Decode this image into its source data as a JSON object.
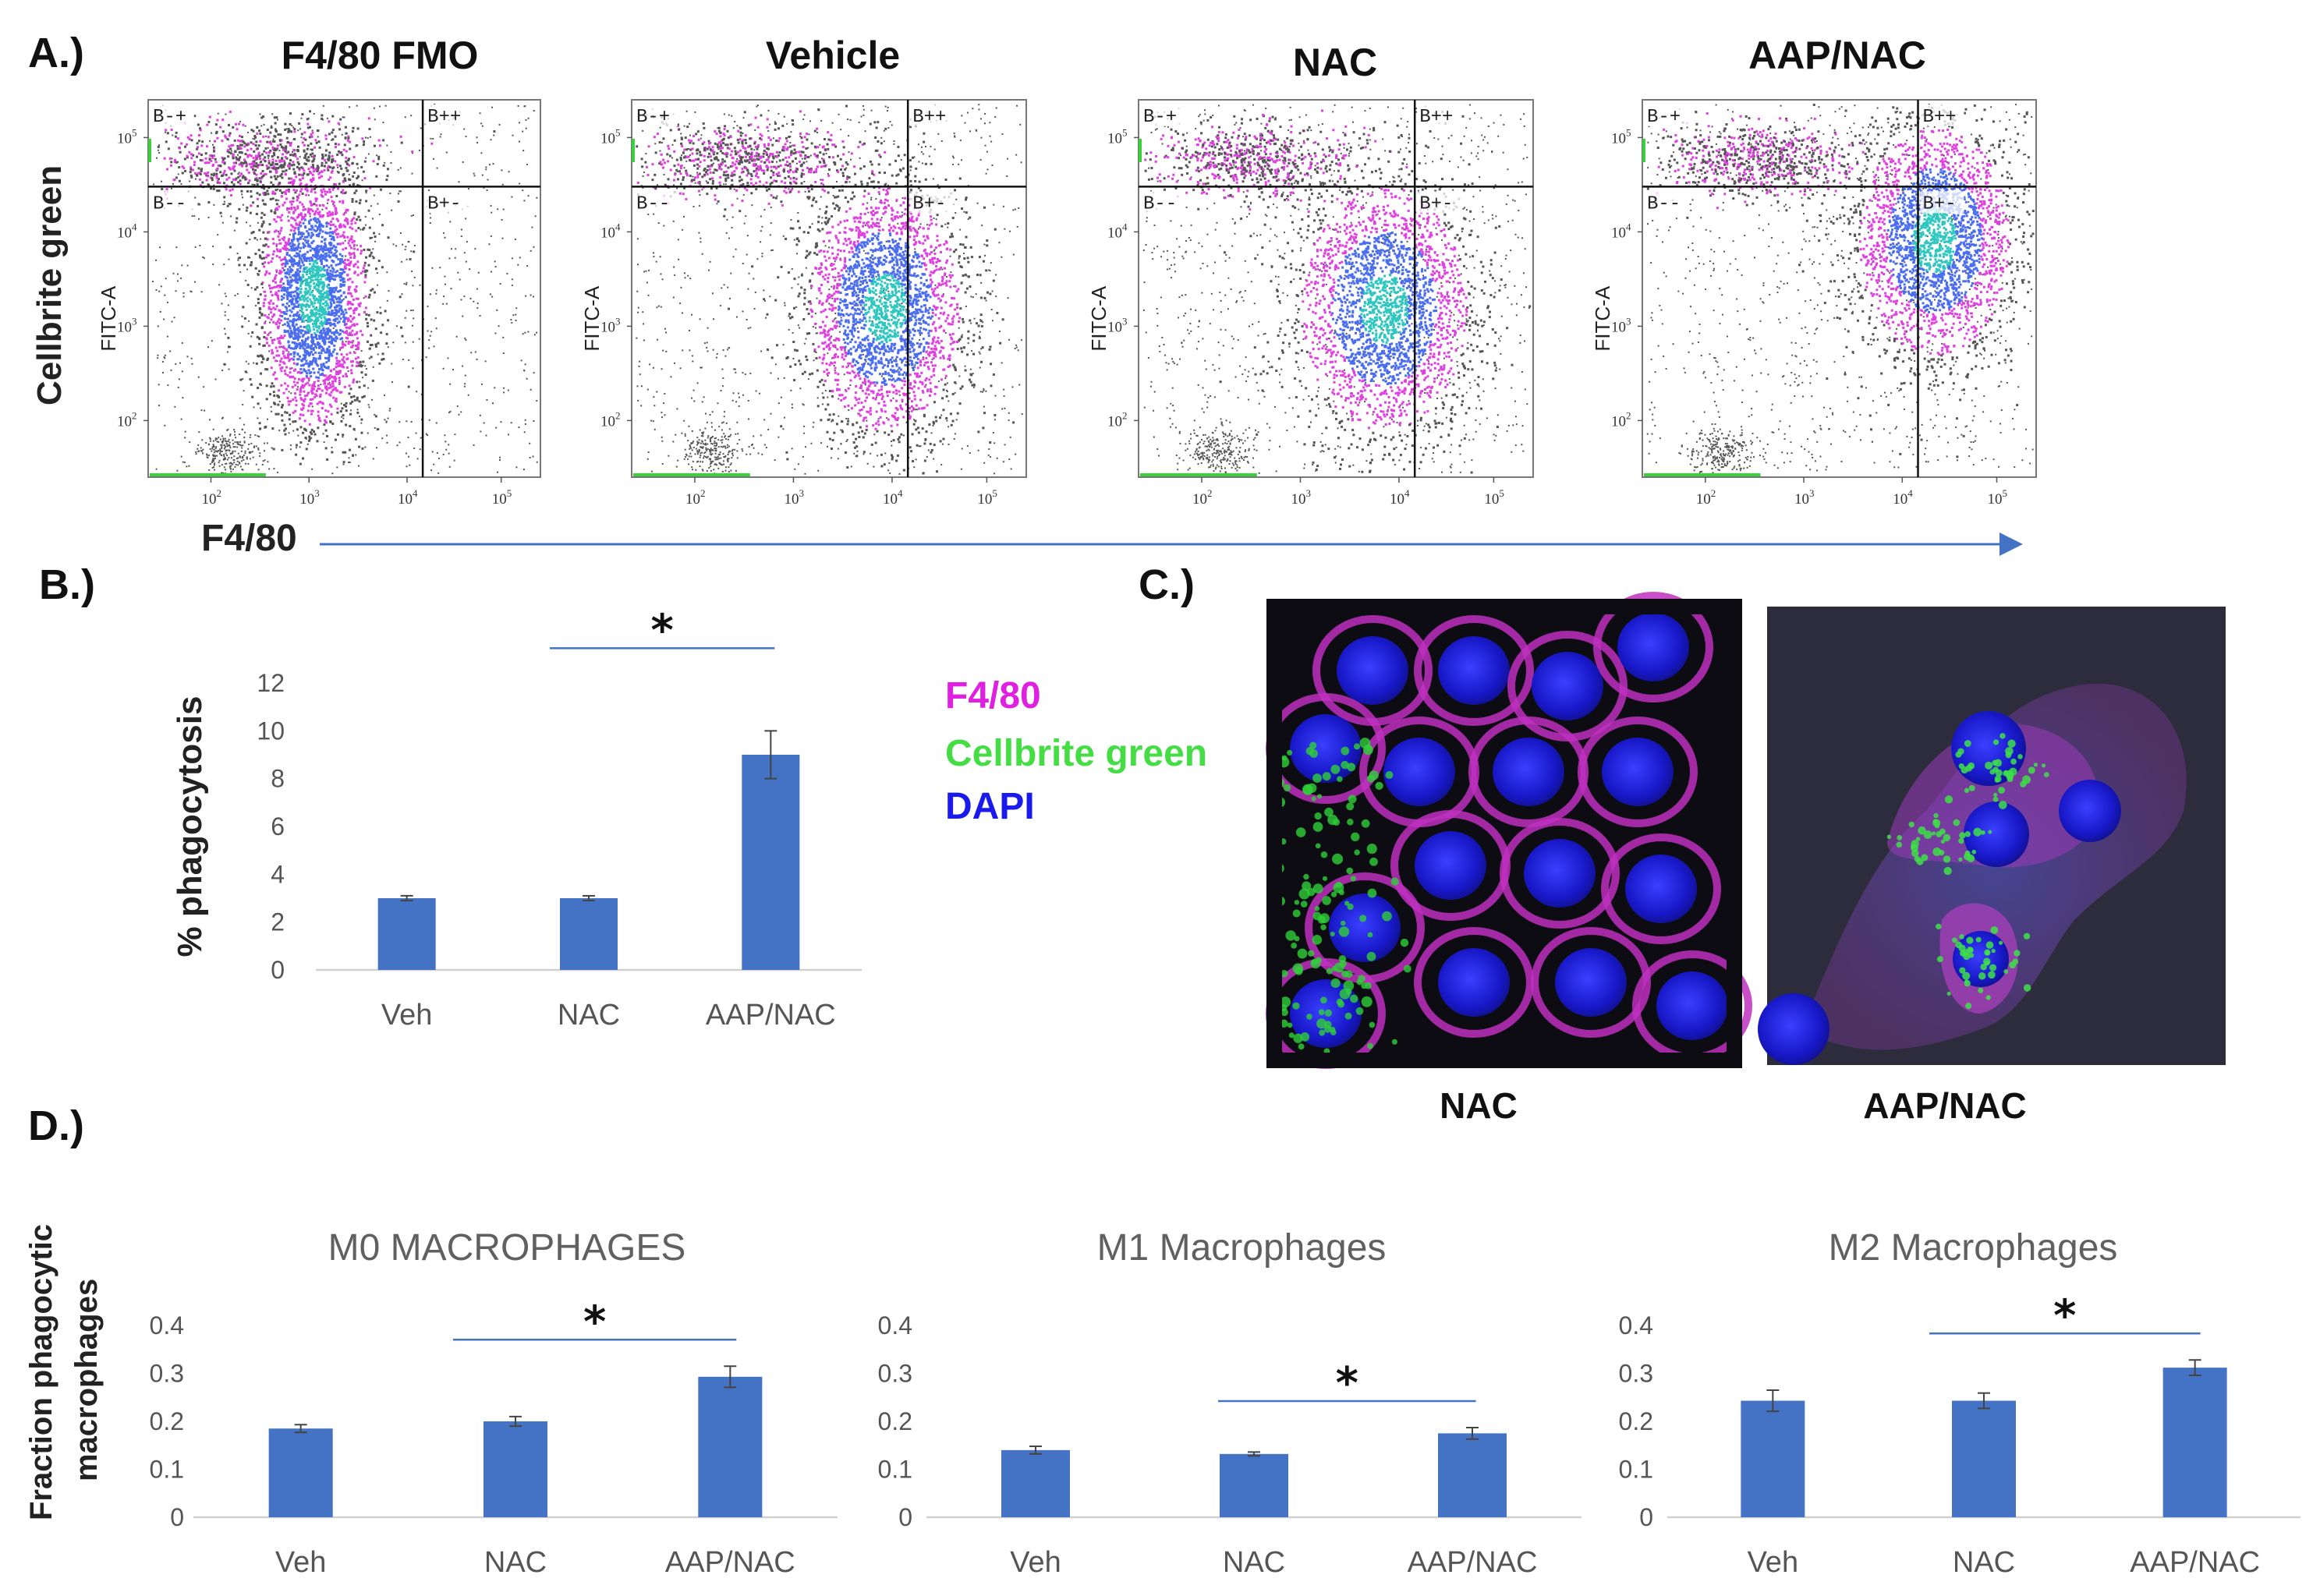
{
  "panel_labels": {
    "a": "A.)",
    "b": "B.)",
    "c": "C.)",
    "d": "D.)"
  },
  "flow": {
    "y_axis_label": "Cellbrite green",
    "y_axis_channel": "FITC-A",
    "x_axis_label": "F4/80",
    "quadrants": {
      "ul": "B-+",
      "ur": "B++",
      "ll": "B--",
      "lr": "B+-"
    },
    "y_ticks": [
      "10",
      "10",
      "10",
      "10"
    ],
    "y_tick_exps": [
      "5",
      "4",
      "3",
      "2"
    ],
    "x_ticks": [
      "10",
      "10",
      "10",
      "10"
    ],
    "x_tick_exps": [
      "2",
      "3",
      "4",
      "5"
    ],
    "colors": {
      "low": "#555555",
      "mid": "#e040e0",
      "high": "#4a6cf0",
      "peak": "#2ec7c0",
      "axis_green": "#3ccf3c",
      "arrow": "#4472c4"
    },
    "panels": [
      {
        "title": "F4/80 FMO",
        "seed": 11,
        "cx": 0.42,
        "cy": 0.52,
        "sx": 0.07,
        "sy": 0.18
      },
      {
        "title": "Vehicle",
        "seed": 23,
        "cx": 0.64,
        "cy": 0.55,
        "sx": 0.1,
        "sy": 0.17
      },
      {
        "title": "NAC",
        "seed": 37,
        "cx": 0.62,
        "cy": 0.55,
        "sx": 0.11,
        "sy": 0.17
      },
      {
        "title": "AAP/NAC",
        "seed": 51,
        "cx": 0.74,
        "cy": 0.37,
        "sx": 0.1,
        "sy": 0.16
      }
    ]
  },
  "legend": {
    "items": [
      {
        "label": "F4/80",
        "color": "#e020e0"
      },
      {
        "label": "Cellbrite green",
        "color": "#44dd44"
      },
      {
        "label": "DAPI",
        "color": "#1a1aee"
      }
    ]
  },
  "micrographs": [
    {
      "caption": "NAC",
      "bg": "#0c0c12"
    },
    {
      "caption": "AAP/NAC",
      "bg": "#2c2c3c"
    }
  ],
  "bar_color": "#4472c4",
  "chart_data": [
    {
      "type": "bar",
      "title": "",
      "categories": [
        "Veh",
        "NAC",
        "AAP/NAC"
      ],
      "values": [
        3.0,
        3.0,
        9.0
      ],
      "errors": [
        0.1,
        0.1,
        1.0
      ],
      "ylabel": "% phagocytosis",
      "xlabel": "",
      "ylim": [
        0,
        12
      ],
      "yticks": [
        "0",
        "2",
        "4",
        "6",
        "8",
        "10",
        "12"
      ],
      "significance": {
        "from": "NAC",
        "to": "AAP/NAC",
        "symbol": "*"
      }
    },
    {
      "type": "bar",
      "title": "M0 MACROPHAGES",
      "categories": [
        "Veh",
        "NAC",
        "AAP/NAC"
      ],
      "values": [
        0.185,
        0.2,
        0.293
      ],
      "errors": [
        0.008,
        0.01,
        0.022
      ],
      "ylabel": "Fraction phagocytic macrophages",
      "xlabel": "",
      "ylim": [
        0,
        0.4
      ],
      "yticks": [
        "0",
        "0.1",
        "0.2",
        "0.3",
        "0.4"
      ],
      "significance": {
        "from": "NAC",
        "to": "AAP/NAC",
        "symbol": "*"
      }
    },
    {
      "type": "bar",
      "title": "M1 Macrophages",
      "categories": [
        "Veh",
        "NAC",
        "AAP/NAC"
      ],
      "values": [
        0.14,
        0.132,
        0.175
      ],
      "errors": [
        0.008,
        0.004,
        0.012
      ],
      "ylabel": "",
      "xlabel": "",
      "ylim": [
        0,
        0.4
      ],
      "yticks": [
        "0",
        "0.1",
        "0.2",
        "0.3",
        "0.4"
      ],
      "significance": {
        "from": "NAC",
        "to": "AAP/NAC",
        "symbol": "*"
      }
    },
    {
      "type": "bar",
      "title": "M2 Macrophages",
      "categories": [
        "Veh",
        "NAC",
        "AAP/NAC"
      ],
      "values": [
        0.243,
        0.243,
        0.312
      ],
      "errors": [
        0.022,
        0.016,
        0.016
      ],
      "ylabel": "",
      "xlabel": "",
      "ylim": [
        0,
        0.4
      ],
      "yticks": [
        "0",
        "0.1",
        "0.2",
        "0.3",
        "0.4"
      ],
      "significance": {
        "from": "NAC",
        "to": "AAP/NAC",
        "symbol": "*"
      }
    }
  ]
}
